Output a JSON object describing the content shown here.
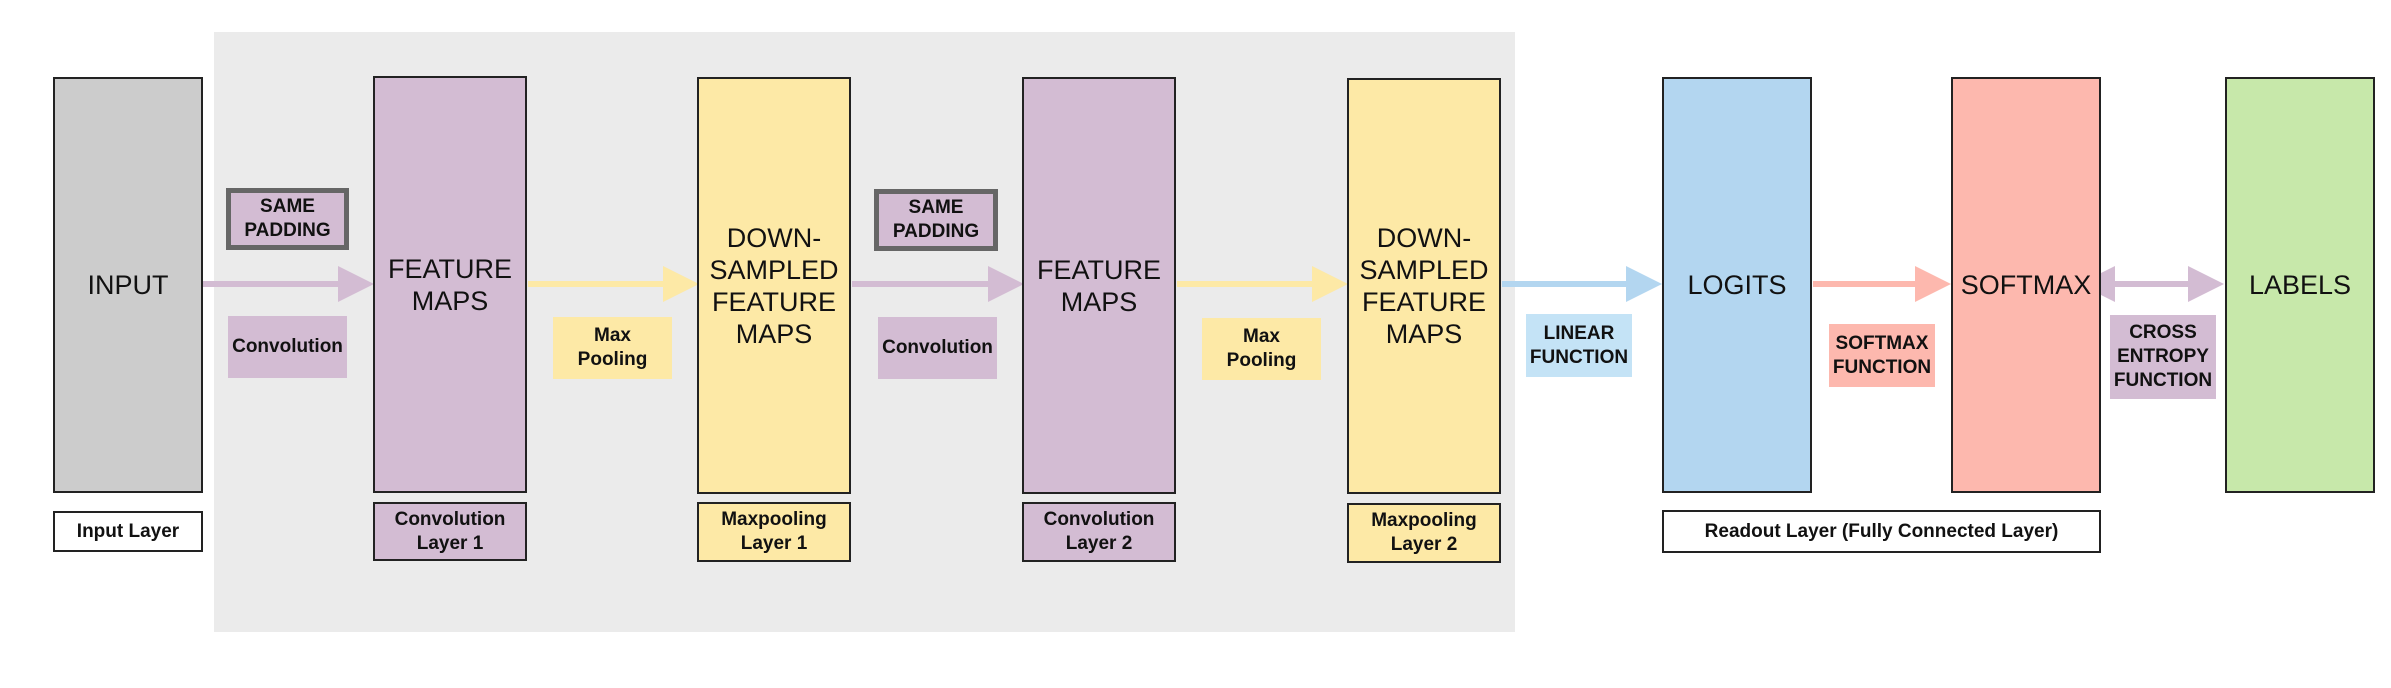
{
  "colors": {
    "background_panel": "#ebebeb",
    "input": "#cccccc",
    "convolution": "#d3bcd3",
    "maxpool": "#fde9a6",
    "logits": "#b3d6f0",
    "softmax": "#fdb8ae",
    "labels": "#c7e8aa",
    "linear_tag": "#c4e3f6",
    "softmax_tag": "#fdb8ae",
    "arrow_purple": "#d3bcd3",
    "arrow_yellow": "#fde9a6",
    "arrow_blue": "#b3d6f0",
    "arrow_salmon": "#fdb8ae"
  },
  "blocks": {
    "input": "INPUT",
    "feature_maps_1": "FEATURE\nMAPS",
    "downsampled_1": "DOWN-\nSAMPLED\nFEATURE\nMAPS",
    "feature_maps_2": "FEATURE\nMAPS",
    "downsampled_2": "DOWN-\nSAMPLED\nFEATURE\nMAPS",
    "logits": "LOGITS",
    "softmax": "SOFTMAX",
    "labels": "LABELS"
  },
  "captions": {
    "input_layer": "Input Layer",
    "conv_layer_1": "Convolution\nLayer 1",
    "maxpool_layer_1": "Maxpooling\nLayer 1",
    "conv_layer_2": "Convolution\nLayer 2",
    "maxpool_layer_2": "Maxpooling\nLayer 2",
    "readout_layer": "Readout Layer (Fully Connected Layer)"
  },
  "operations": {
    "same_padding_1": "SAME\nPADDING",
    "convolution_1": "Convolution",
    "max_pooling_1": "Max\nPooling",
    "same_padding_2": "SAME\nPADDING",
    "convolution_2": "Convolution",
    "max_pooling_2": "Max\nPooling",
    "linear_function": "LINEAR\nFUNCTION",
    "softmax_function": "SOFTMAX\nFUNCTION",
    "cross_entropy_function": "CROSS\nENTROPY\nFUNCTION"
  }
}
